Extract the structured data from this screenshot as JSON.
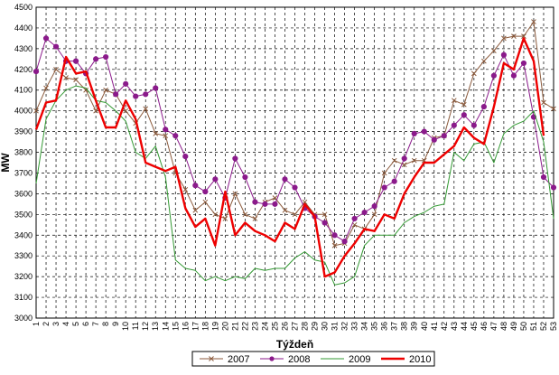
{
  "chart_data": {
    "type": "line",
    "title": "",
    "xlabel": "Týždeň",
    "ylabel": "MW",
    "ylim": [
      3000,
      4500
    ],
    "y_ticks": [
      "3000",
      "3100",
      "3200",
      "3300",
      "3400",
      "3500",
      "3600",
      "3700",
      "3800",
      "3900",
      "4000",
      "4100",
      "4200",
      "4300",
      "4400",
      "4500"
    ],
    "x_ticks": [
      "1",
      "2",
      "3",
      "4",
      "5",
      "6",
      "7",
      "8",
      "9",
      "10",
      "11",
      "12",
      "13",
      "14",
      "15",
      "16",
      "17",
      "18",
      "19",
      "20",
      "21",
      "22",
      "23",
      "24",
      "25",
      "26",
      "27",
      "28",
      "29",
      "30",
      "31",
      "32",
      "33",
      "34",
      "35",
      "36",
      "37",
      "38",
      "39",
      "40",
      "41",
      "42",
      "43",
      "44",
      "45",
      "46",
      "47",
      "48",
      "49",
      "50",
      "51",
      "52",
      "53"
    ],
    "x": [
      1,
      2,
      3,
      4,
      5,
      6,
      7,
      8,
      9,
      10,
      11,
      12,
      13,
      14,
      15,
      16,
      17,
      18,
      19,
      20,
      21,
      22,
      23,
      24,
      25,
      26,
      27,
      28,
      29,
      30,
      31,
      32,
      33,
      34,
      35,
      36,
      37,
      38,
      39,
      40,
      41,
      42,
      43,
      44,
      45,
      46,
      47,
      48,
      49,
      50,
      51,
      52,
      53
    ],
    "grid": true,
    "legend_position": "bottom",
    "series": [
      {
        "name": "2007",
        "color": "#8b5a3c",
        "marker": "x",
        "values": [
          4000,
          4110,
          4200,
          4160,
          4150,
          4100,
          4000,
          4100,
          4080,
          4000,
          3940,
          4010,
          3890,
          3880,
          3700,
          3620,
          3520,
          3560,
          3500,
          3480,
          3600,
          3500,
          3480,
          3560,
          3580,
          3520,
          3500,
          3560,
          3500,
          3500,
          3350,
          3360,
          3450,
          3430,
          3500,
          3700,
          3760,
          3740,
          3760,
          3760,
          3870,
          3880,
          4050,
          4030,
          4180,
          4240,
          4290,
          4350,
          4360,
          4360,
          4430,
          4040,
          4010
        ]
      },
      {
        "name": "2008",
        "color": "#8b1a8b",
        "marker": "circle",
        "values": [
          4190,
          4350,
          4310,
          4240,
          4240,
          4180,
          4250,
          4260,
          4080,
          4130,
          4070,
          4080,
          4110,
          3910,
          3880,
          3780,
          3640,
          3610,
          3670,
          3580,
          3770,
          3680,
          3560,
          3550,
          3550,
          3670,
          3630,
          3530,
          3490,
          3460,
          3400,
          3370,
          3480,
          3510,
          3540,
          3630,
          3660,
          3770,
          3890,
          3900,
          3860,
          3880,
          3930,
          3980,
          3930,
          4020,
          4170,
          4270,
          4170,
          4230,
          3970,
          3680,
          3630
        ]
      },
      {
        "name": "2009",
        "color": "#339933",
        "marker": "none",
        "values": [
          3650,
          3960,
          4050,
          4100,
          4120,
          4110,
          4050,
          4040,
          4000,
          3950,
          3800,
          3770,
          3830,
          3680,
          3280,
          3240,
          3230,
          3180,
          3200,
          3180,
          3200,
          3190,
          3240,
          3230,
          3240,
          3240,
          3290,
          3320,
          3280,
          3270,
          3160,
          3170,
          3200,
          3350,
          3400,
          3400,
          3400,
          3460,
          3490,
          3510,
          3540,
          3550,
          3800,
          3760,
          3840,
          3850,
          3750,
          3890,
          3930,
          3950,
          4000,
          3850,
          3480
        ]
      },
      {
        "name": "2010",
        "color": "#ee0000",
        "marker": "none",
        "values": [
          3910,
          4040,
          4050,
          4260,
          4180,
          4190,
          4050,
          3920,
          3920,
          4050,
          3960,
          3750,
          3730,
          3710,
          3730,
          3530,
          3440,
          3480,
          3350,
          3610,
          3400,
          3460,
          3420,
          3400,
          3370,
          3460,
          3430,
          3550,
          3490,
          3200,
          3220,
          3300,
          3360,
          3430,
          3420,
          3500,
          3480,
          3600,
          3680,
          3750,
          3750,
          3790,
          3830,
          3920,
          3870,
          3840,
          4020,
          4230,
          4200,
          4350,
          4240,
          3880,
          null
        ]
      }
    ]
  }
}
